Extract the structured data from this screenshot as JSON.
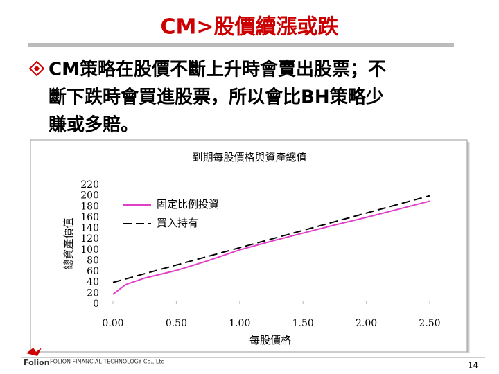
{
  "slide": {
    "title": "CM>股價續漲或跌",
    "bullet_lines": [
      "CM策略在股價不斷上升時會賣出股票；不",
      "斷下跌時會買進股票，所以會比BH策略少",
      "賺或多賠。"
    ],
    "logo": "Folion",
    "company": "FOLION FINANCIAL TECHNOLOGY Co., Ltd",
    "page_number": "14"
  },
  "chart_data": {
    "type": "line",
    "title": "到期每股價格與資產總值",
    "x_label": "每股價格",
    "y_label": "總資產價值",
    "x": [
      0,
      0.1,
      0.25,
      0.5,
      0.75,
      1,
      1.25,
      1.5,
      1.75,
      2,
      2.25,
      2.5
    ],
    "series": [
      {
        "name": "固定比例投資",
        "color": "#e040c8",
        "dashed": false,
        "values": [
          18,
          36,
          48,
          62,
          80,
          100,
          116,
          131,
          146,
          160,
          175,
          190
        ]
      },
      {
        "name": "買入持有",
        "color": "#000000",
        "dashed": true,
        "values": [
          40,
          46.4,
          56,
          72,
          88,
          104,
          120,
          136,
          152,
          168,
          184,
          200
        ]
      }
    ],
    "xlim": [
      0,
      2.5
    ],
    "xticks": [
      {
        "value": 0,
        "label": "0.00"
      },
      {
        "value": 0.5,
        "label": "0.50"
      },
      {
        "value": 1,
        "label": "1.00"
      },
      {
        "value": 1.5,
        "label": "1.50"
      },
      {
        "value": 2,
        "label": "2.00"
      },
      {
        "value": 2.5,
        "label": "2.50"
      }
    ],
    "ylim": [
      0,
      220
    ],
    "yticks": [
      0,
      20,
      40,
      60,
      80,
      100,
      120,
      140,
      160,
      180,
      200,
      220
    ],
    "legend": "upper-left",
    "grid": false
  }
}
